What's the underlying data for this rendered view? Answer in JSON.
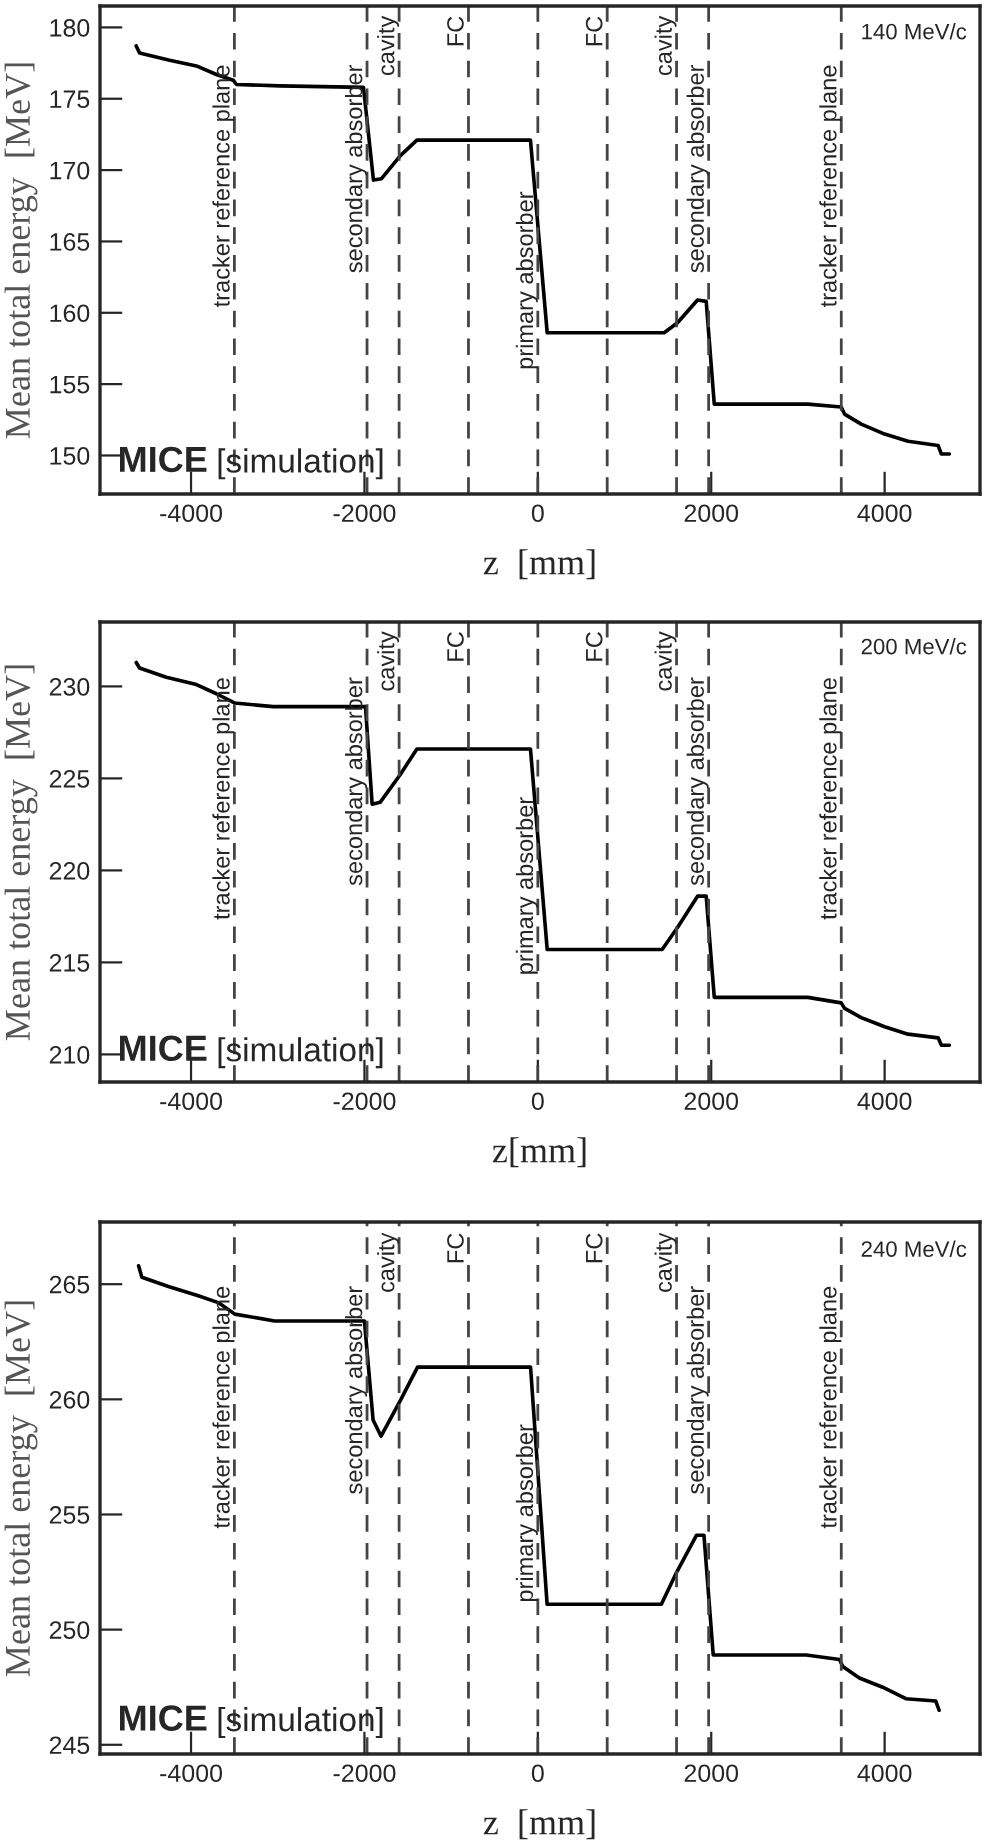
{
  "chart_data": [
    {
      "type": "line",
      "ylabel": "Mean total energy  [MeV]",
      "xlabel": "z  [mm]",
      "xlim": [
        -5050,
        5100
      ],
      "xticks": [
        -4000,
        -2000,
        0,
        2000,
        4000
      ],
      "ylim": [
        147.3,
        181.5
      ],
      "yticks": [
        150,
        155,
        160,
        165,
        170,
        175,
        180
      ],
      "line_style": "solid",
      "annotations": [
        "140 MeV/c",
        "MICE",
        "[simulation]"
      ],
      "ref_lines": [
        {
          "axis": "x",
          "value": -3500,
          "label": "tracker reference plane",
          "line_style": "dashed"
        },
        {
          "axis": "x",
          "value": -1970,
          "label": "secondary absorber",
          "line_style": "dashed"
        },
        {
          "axis": "x",
          "value": -1600,
          "label": "cavity",
          "line_style": "dashed"
        },
        {
          "axis": "x",
          "value": -800,
          "label": "FC",
          "line_style": "dashed"
        },
        {
          "axis": "x",
          "value": 0,
          "label": "primary absorber",
          "line_style": "dashed"
        },
        {
          "axis": "x",
          "value": 800,
          "label": "FC",
          "line_style": "dashed"
        },
        {
          "axis": "x",
          "value": 1600,
          "label": "cavity",
          "line_style": "dashed"
        },
        {
          "axis": "x",
          "value": 1970,
          "label": "secondary absorber",
          "line_style": "dashed"
        },
        {
          "axis": "x",
          "value": 3500,
          "label": "tracker reference plane",
          "line_style": "dashed"
        }
      ],
      "series": [
        {
          "color": "#000000",
          "x": [
            -4632,
            -4594,
            -4247,
            -3938,
            -3707,
            -3514,
            -3476,
            -2975,
            -2011,
            -1896,
            -1803,
            -1588,
            -1395,
            -85,
            108,
            1457,
            1611,
            1842,
            1942,
            2035,
            3114,
            3499,
            3538,
            3730,
            4000,
            4270,
            4617,
            4655,
            4747
          ],
          "values": [
            178.7,
            178.2,
            177.7,
            177.3,
            176.7,
            176.3,
            176.0,
            175.9,
            175.8,
            169.3,
            169.4,
            171.0,
            172.1,
            172.1,
            158.6,
            158.6,
            159.3,
            160.9,
            160.8,
            153.6,
            153.6,
            153.4,
            152.9,
            152.2,
            151.5,
            151.0,
            150.7,
            150.1,
            150.1
          ]
        }
      ]
    },
    {
      "type": "line",
      "ylabel": "Mean total energy  [MeV]",
      "xlabel": "z[mm]",
      "xlim": [
        -5050,
        5100
      ],
      "xticks": [
        -4000,
        -2000,
        0,
        2000,
        4000
      ],
      "ylim": [
        208.5,
        233.5
      ],
      "yticks": [
        210,
        215,
        220,
        225,
        230
      ],
      "line_style": "solid",
      "annotations": [
        "200 MeV/c",
        "MICE",
        "[simulation]"
      ],
      "ref_lines": [
        {
          "axis": "x",
          "value": -3500,
          "label": "tracker reference plane",
          "line_style": "dashed"
        },
        {
          "axis": "x",
          "value": -1970,
          "label": "secondary absorber",
          "line_style": "dashed"
        },
        {
          "axis": "x",
          "value": -1600,
          "label": "cavity",
          "line_style": "dashed"
        },
        {
          "axis": "x",
          "value": -800,
          "label": "FC",
          "line_style": "dashed"
        },
        {
          "axis": "x",
          "value": 0,
          "label": "primary absorber",
          "line_style": "dashed"
        },
        {
          "axis": "x",
          "value": 800,
          "label": "FC",
          "line_style": "dashed"
        },
        {
          "axis": "x",
          "value": 1600,
          "label": "cavity",
          "line_style": "dashed"
        },
        {
          "axis": "x",
          "value": 1970,
          "label": "secondary absorber",
          "line_style": "dashed"
        },
        {
          "axis": "x",
          "value": 3500,
          "label": "tracker reference plane",
          "line_style": "dashed"
        }
      ],
      "series": [
        {
          "color": "#000000",
          "x": [
            -4632,
            -4594,
            -4285,
            -3938,
            -3707,
            -3499,
            -3052,
            -1988,
            -1911,
            -1819,
            -1588,
            -1395,
            -85,
            108,
            1434,
            1611,
            1842,
            1942,
            2035,
            3114,
            3499,
            3538,
            3730,
            4000,
            4270,
            4617,
            4655,
            4747
          ],
          "values": [
            231.3,
            231.0,
            230.5,
            230.1,
            229.6,
            229.1,
            228.9,
            228.9,
            223.6,
            223.7,
            225.2,
            226.6,
            226.6,
            215.7,
            215.7,
            216.9,
            218.6,
            218.6,
            213.1,
            213.1,
            212.8,
            212.5,
            212.0,
            211.5,
            211.1,
            210.9,
            210.5,
            210.5
          ]
        }
      ]
    },
    {
      "type": "line",
      "ylabel": "Mean total energy  [MeV]",
      "xlabel": "z  [mm]",
      "xlim": [
        -5050,
        5100
      ],
      "xticks": [
        -4000,
        -2000,
        0,
        2000,
        4000
      ],
      "ylim": [
        244.6,
        267.7
      ],
      "yticks": [
        245,
        250,
        255,
        260,
        265
      ],
      "line_style": "solid",
      "annotations": [
        "240 MeV/c",
        "MICE",
        "[simulation]"
      ],
      "ref_lines": [
        {
          "axis": "x",
          "value": -3500,
          "label": "tracker reference plane",
          "line_style": "dashed"
        },
        {
          "axis": "x",
          "value": -1970,
          "label": "secondary absorber",
          "line_style": "dashed"
        },
        {
          "axis": "x",
          "value": -1600,
          "label": "cavity",
          "line_style": "dashed"
        },
        {
          "axis": "x",
          "value": -800,
          "label": "FC",
          "line_style": "dashed"
        },
        {
          "axis": "x",
          "value": 0,
          "label": "primary absorber",
          "line_style": "dashed"
        },
        {
          "axis": "x",
          "value": 800,
          "label": "FC",
          "line_style": "dashed"
        },
        {
          "axis": "x",
          "value": 1600,
          "label": "cavity",
          "line_style": "dashed"
        },
        {
          "axis": "x",
          "value": 1970,
          "label": "secondary absorber",
          "line_style": "dashed"
        },
        {
          "axis": "x",
          "value": 3500,
          "label": "tracker reference plane",
          "line_style": "dashed"
        }
      ],
      "series": [
        {
          "color": "#000000",
          "x": [
            -4605,
            -4567,
            -4261,
            -3916,
            -3686,
            -3495,
            -3035,
            -2000,
            -1900,
            -1808,
            -1579,
            -1387,
            -84,
            107,
            1425,
            1602,
            1831,
            1916,
            2023,
            3096,
            3479,
            3517,
            3709,
            3977,
            4245,
            4590,
            4628
          ],
          "values": [
            265.8,
            265.3,
            264.9,
            264.5,
            264.2,
            263.7,
            263.4,
            263.4,
            259.1,
            258.4,
            260.0,
            261.4,
            261.4,
            251.1,
            251.1,
            252.5,
            254.1,
            254.1,
            248.9,
            248.9,
            248.7,
            248.4,
            247.9,
            247.5,
            247.0,
            246.9,
            246.5
          ]
        }
      ]
    }
  ]
}
